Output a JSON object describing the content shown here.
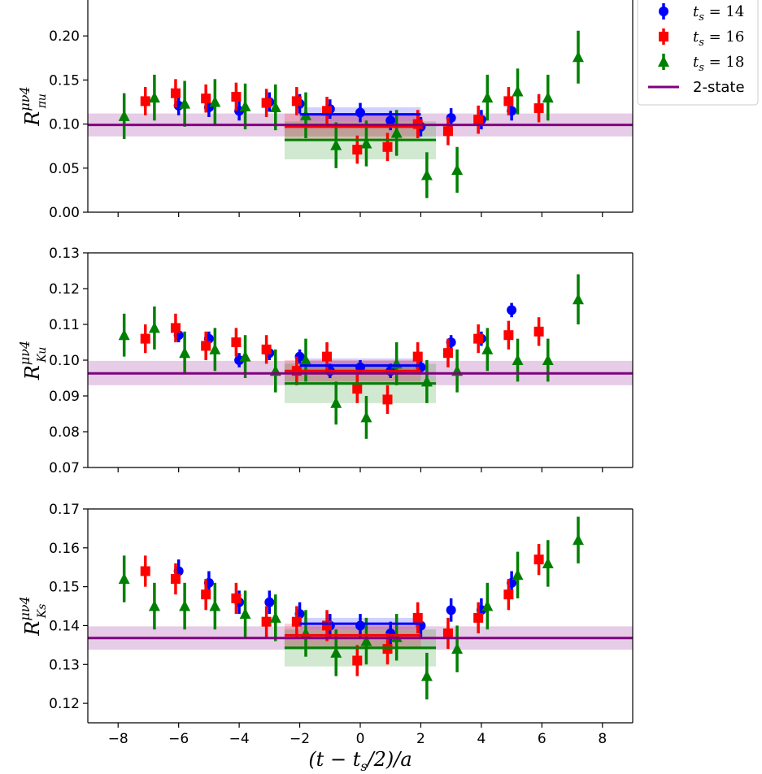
{
  "colors": {
    "ts14": "#0000ff",
    "ts16": "#ff0000",
    "ts18": "#008000",
    "two_state": "#800080"
  },
  "legend": {
    "entries": [
      {
        "series": "ts14",
        "label": "t_s = 14",
        "marker": "circle"
      },
      {
        "series": "ts16",
        "label": "t_s = 16",
        "marker": "square"
      },
      {
        "series": "ts18",
        "label": "t_s = 18",
        "marker": "triangle"
      },
      {
        "series": "two_state",
        "label": "2-state",
        "marker": "line"
      }
    ]
  },
  "chart_data": [
    {
      "type": "scatter",
      "ylabel": "R^{μν4}_{π_u}",
      "xlabel": "",
      "xlim": [
        -9,
        9
      ],
      "ylim": [
        0.0,
        0.25
      ],
      "yticks": [
        "0.00",
        "0.05",
        "0.10",
        "0.15",
        "0.20"
      ],
      "grid": false,
      "series": [
        {
          "name": "t_s = 14",
          "x": [
            -6,
            -5,
            -4,
            -3,
            -2,
            -1,
            0,
            1,
            2,
            3,
            4,
            5
          ],
          "y": [
            0.121,
            0.119,
            0.115,
            0.125,
            0.123,
            0.117,
            0.113,
            0.104,
            0.097,
            0.107,
            0.105,
            0.115
          ],
          "err": [
            0.011,
            0.011,
            0.011,
            0.011,
            0.011,
            0.011,
            0.011,
            0.011,
            0.011,
            0.011,
            0.011,
            0.011
          ]
        },
        {
          "name": "t_s = 16",
          "x": [
            -7.1,
            -6.1,
            -5.1,
            -4.1,
            -3.1,
            -2.1,
            -1.1,
            -0.1,
            0.9,
            1.9,
            2.9,
            3.9,
            4.9,
            5.9
          ],
          "y": [
            0.126,
            0.135,
            0.129,
            0.131,
            0.124,
            0.126,
            0.115,
            0.071,
            0.074,
            0.1,
            0.092,
            0.105,
            0.126,
            0.118
          ],
          "err": [
            0.016,
            0.016,
            0.016,
            0.016,
            0.016,
            0.016,
            0.016,
            0.016,
            0.016,
            0.016,
            0.016,
            0.016,
            0.016,
            0.016
          ]
        },
        {
          "name": "t_s = 18",
          "x": [
            -7.8,
            -6.8,
            -5.8,
            -4.8,
            -3.8,
            -2.8,
            -1.8,
            -0.8,
            0.2,
            1.2,
            2.2,
            3.2,
            4.2,
            5.2,
            6.2,
            7.2
          ],
          "y": [
            0.109,
            0.13,
            0.123,
            0.125,
            0.12,
            0.119,
            0.11,
            0.076,
            0.078,
            0.09,
            0.042,
            0.048,
            0.13,
            0.137,
            0.13,
            0.176
          ],
          "err": [
            0.026,
            0.026,
            0.026,
            0.026,
            0.026,
            0.026,
            0.026,
            0.026,
            0.026,
            0.026,
            0.026,
            0.026,
            0.026,
            0.026,
            0.026,
            0.03
          ]
        }
      ],
      "plateaus": [
        {
          "series": "ts14",
          "x": [
            -2.0,
            2.0
          ],
          "y": 0.111,
          "band": [
            0.103,
            0.119
          ]
        },
        {
          "series": "ts16",
          "x": [
            -2.5,
            2.0
          ],
          "y": 0.097,
          "band": [
            0.083,
            0.112
          ]
        },
        {
          "series": "ts18",
          "x": [
            -2.5,
            2.5
          ],
          "y": 0.082,
          "band": [
            0.06,
            0.103
          ]
        }
      ],
      "two_state": {
        "y": 0.099,
        "band": [
          0.086,
          0.112
        ]
      }
    },
    {
      "type": "scatter",
      "ylabel": "R^{μν4}_{K_u}",
      "xlabel": "",
      "xlim": [
        -9,
        9
      ],
      "ylim": [
        0.07,
        0.13
      ],
      "yticks": [
        "0.07",
        "0.08",
        "0.09",
        "0.10",
        "0.11",
        "0.12",
        "0.13"
      ],
      "grid": false,
      "series": [
        {
          "name": "t_s = 14",
          "x": [
            -6,
            -5,
            -4,
            -3,
            -2,
            -1,
            0,
            1,
            2,
            3,
            4,
            5
          ],
          "y": [
            0.107,
            0.106,
            0.1,
            0.102,
            0.101,
            0.097,
            0.098,
            0.097,
            0.098,
            0.105,
            0.106,
            0.114
          ],
          "err": [
            0.002,
            0.002,
            0.002,
            0.002,
            0.002,
            0.002,
            0.002,
            0.002,
            0.002,
            0.002,
            0.002,
            0.002
          ]
        },
        {
          "name": "t_s = 16",
          "x": [
            -7.1,
            -6.1,
            -5.1,
            -4.1,
            -3.1,
            -2.1,
            -1.1,
            -0.1,
            0.9,
            1.9,
            2.9,
            3.9,
            4.9,
            5.9
          ],
          "y": [
            0.106,
            0.109,
            0.104,
            0.105,
            0.103,
            0.097,
            0.101,
            0.092,
            0.089,
            0.101,
            0.102,
            0.106,
            0.107,
            0.108
          ],
          "err": [
            0.004,
            0.004,
            0.004,
            0.004,
            0.004,
            0.004,
            0.004,
            0.004,
            0.004,
            0.004,
            0.004,
            0.004,
            0.004,
            0.004
          ]
        },
        {
          "name": "t_s = 18",
          "x": [
            -7.8,
            -6.8,
            -5.8,
            -4.8,
            -3.8,
            -2.8,
            -1.8,
            -0.8,
            0.2,
            1.2,
            2.2,
            3.2,
            4.2,
            5.2,
            6.2,
            7.2
          ],
          "y": [
            0.107,
            0.109,
            0.102,
            0.103,
            0.101,
            0.097,
            0.1,
            0.088,
            0.084,
            0.099,
            0.094,
            0.097,
            0.103,
            0.1,
            0.1,
            0.117
          ],
          "err": [
            0.006,
            0.006,
            0.006,
            0.006,
            0.006,
            0.006,
            0.006,
            0.006,
            0.006,
            0.006,
            0.006,
            0.006,
            0.006,
            0.006,
            0.006,
            0.007
          ]
        }
      ],
      "plateaus": [
        {
          "series": "ts14",
          "x": [
            -2.0,
            2.0
          ],
          "y": 0.0985,
          "band": [
            0.0965,
            0.1005
          ]
        },
        {
          "series": "ts16",
          "x": [
            -2.5,
            2.0
          ],
          "y": 0.097,
          "band": [
            0.094,
            0.1
          ]
        },
        {
          "series": "ts18",
          "x": [
            -2.5,
            2.5
          ],
          "y": 0.0935,
          "band": [
            0.088,
            0.099
          ]
        }
      ],
      "two_state": {
        "y": 0.0963,
        "band": [
          0.093,
          0.0998
        ]
      }
    },
    {
      "type": "scatter",
      "ylabel": "R^{μν4}_{K_s}",
      "xlabel": "(t - t_s/2)/a",
      "xlim": [
        -9,
        9
      ],
      "ylim": [
        0.115,
        0.17
      ],
      "xticks": [
        "−8",
        "−6",
        "−4",
        "−2",
        "0",
        "2",
        "4",
        "6",
        "8"
      ],
      "yticks": [
        "0.12",
        "0.13",
        "0.14",
        "0.15",
        "0.16",
        "0.17"
      ],
      "grid": false,
      "series": [
        {
          "name": "t_s = 14",
          "x": [
            -6,
            -5,
            -4,
            -3,
            -2,
            -1,
            0,
            1,
            2,
            3,
            4,
            5
          ],
          "y": [
            0.154,
            0.151,
            0.146,
            0.146,
            0.143,
            0.14,
            0.14,
            0.138,
            0.14,
            0.144,
            0.144,
            0.151
          ],
          "err": [
            0.003,
            0.003,
            0.003,
            0.003,
            0.003,
            0.003,
            0.003,
            0.003,
            0.003,
            0.003,
            0.003,
            0.003
          ]
        },
        {
          "name": "t_s = 16",
          "x": [
            -7.1,
            -6.1,
            -5.1,
            -4.1,
            -3.1,
            -2.1,
            -1.1,
            -0.1,
            0.9,
            1.9,
            2.9,
            3.9,
            4.9,
            5.9
          ],
          "y": [
            0.154,
            0.152,
            0.148,
            0.147,
            0.141,
            0.141,
            0.14,
            0.131,
            0.134,
            0.142,
            0.138,
            0.142,
            0.148,
            0.157
          ],
          "err": [
            0.004,
            0.004,
            0.004,
            0.004,
            0.004,
            0.004,
            0.004,
            0.004,
            0.004,
            0.004,
            0.004,
            0.004,
            0.004,
            0.004
          ]
        },
        {
          "name": "t_s = 18",
          "x": [
            -7.8,
            -6.8,
            -5.8,
            -4.8,
            -3.8,
            -2.8,
            -1.8,
            -0.8,
            0.2,
            1.2,
            2.2,
            3.2,
            4.2,
            5.2,
            6.2,
            7.2
          ],
          "y": [
            0.152,
            0.145,
            0.145,
            0.145,
            0.143,
            0.142,
            0.138,
            0.133,
            0.136,
            0.137,
            0.127,
            0.134,
            0.145,
            0.153,
            0.156,
            0.162
          ],
          "err": [
            0.006,
            0.006,
            0.006,
            0.006,
            0.006,
            0.006,
            0.006,
            0.006,
            0.006,
            0.006,
            0.006,
            0.006,
            0.006,
            0.006,
            0.006,
            0.006
          ]
        }
      ],
      "plateaus": [
        {
          "series": "ts14",
          "x": [
            -2.0,
            2.0
          ],
          "y": 0.1405,
          "band": [
            0.139,
            0.142
          ]
        },
        {
          "series": "ts16",
          "x": [
            -2.5,
            2.0
          ],
          "y": 0.1375,
          "band": [
            0.1345,
            0.1405
          ]
        },
        {
          "series": "ts18",
          "x": [
            -2.5,
            2.5
          ],
          "y": 0.1343,
          "band": [
            0.1295,
            0.139
          ]
        }
      ],
      "two_state": {
        "y": 0.1368,
        "band": [
          0.1338,
          0.1398
        ]
      }
    }
  ]
}
